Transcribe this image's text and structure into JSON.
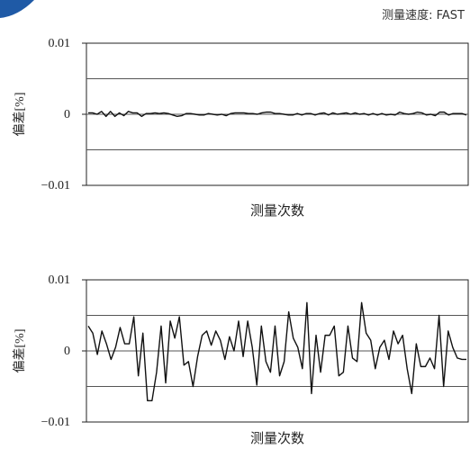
{
  "header": {
    "speed_label": "测量速度: FAST"
  },
  "colors": {
    "accent_badge": "#1f5aa6",
    "line": "#111111",
    "grid": "#555555",
    "axis": "#222222"
  },
  "chart_data": [
    {
      "type": "line",
      "title": "",
      "xlabel": "测量次数",
      "ylabel": "偏差[%]",
      "ylim": [
        -0.01,
        0.01
      ],
      "yticks": [
        0.01,
        0,
        -0.01
      ],
      "ytick_labels": [
        "0.01",
        "0",
        "−0.01"
      ],
      "grid": "horizontal",
      "series": [
        {
          "values": [
            0.0002,
            0.0002,
            0,
            0.0004,
            -0.0003,
            0.0004,
            -0.0003,
            0.0002,
            -0.0002,
            0.0004,
            0.0002,
            0.0002,
            -0.0003,
            0.0001,
            0.0001,
            0.0002,
            0.0001,
            0.0002,
            0.0001,
            -0.0001,
            -0.0003,
            -0.0002,
            0.0001,
            0.0001,
            0,
            -0.0001,
            -0.0001,
            0.0001,
            0,
            -0.0001,
            0,
            -0.0002,
            0.0001,
            0.0002,
            0.0002,
            0.0002,
            0.0001,
            0.0001,
            0,
            0.0002,
            0.0003,
            0.0003,
            0.0001,
            0.0001,
            0,
            -0.0001,
            -0.0001,
            0.0001,
            -0.0001,
            0.0001,
            0.0001,
            -0.0001,
            0.0001,
            0.0002,
            -0.0001,
            0.0002,
            0,
            0.0001,
            0.0002,
            0,
            0.0002,
            0,
            0.0001,
            -0.0001,
            0.0001,
            -0.0001,
            0.0001,
            -0.0001,
            0,
            -0.0001,
            0.0003,
            0.0001,
            0,
            0.0001,
            0.0003,
            0.0002,
            -0.0001,
            0,
            -0.0002,
            0.0003,
            0.0003,
            -0.0001,
            0.0001,
            0.0001,
            0.0001,
            -0.0001
          ]
        }
      ]
    },
    {
      "type": "line",
      "title": "",
      "xlabel": "测量次数",
      "ylabel": "偏差[%]",
      "ylim": [
        -0.01,
        0.01
      ],
      "yticks": [
        0.01,
        0,
        -0.01
      ],
      "ytick_labels": [
        "0.01",
        "0",
        "−0.01"
      ],
      "grid": "horizontal",
      "series": [
        {
          "values": [
            0.0035,
            0.0025,
            -0.0005,
            0.0028,
            0.001,
            -0.0012,
            0.0005,
            0.0033,
            0.001,
            0.001,
            0.0048,
            -0.0035,
            0.0025,
            -0.007,
            -0.007,
            -0.003,
            0.0035,
            -0.0045,
            0.0042,
            0.0018,
            0.0048,
            -0.002,
            -0.0015,
            -0.005,
            -0.0008,
            0.0022,
            0.0028,
            0.0008,
            0.0028,
            0.0015,
            -0.0012,
            0.002,
            0,
            0.0042,
            -0.0008,
            0.0042,
            0.0005,
            -0.0048,
            0.0035,
            -0.0015,
            -0.003,
            0.0035,
            -0.0035,
            -0.0015,
            0.0055,
            0.0018,
            0.0005,
            -0.0025,
            0.0068,
            -0.006,
            0.0022,
            -0.003,
            0.0022,
            0.0022,
            0.0035,
            -0.0035,
            -0.003,
            0.0035,
            -0.001,
            -0.0015,
            0.0068,
            0.0025,
            0.0015,
            -0.0025,
            0.0005,
            0.0015,
            -0.0012,
            0.0028,
            0.001,
            0.0022,
            -0.0025,
            -0.006,
            0.001,
            -0.0022,
            -0.0022,
            -0.001,
            -0.0025,
            0.005,
            -0.005,
            0.0028,
            0.0005,
            -0.001,
            -0.0012,
            -0.0012
          ]
        }
      ]
    }
  ]
}
